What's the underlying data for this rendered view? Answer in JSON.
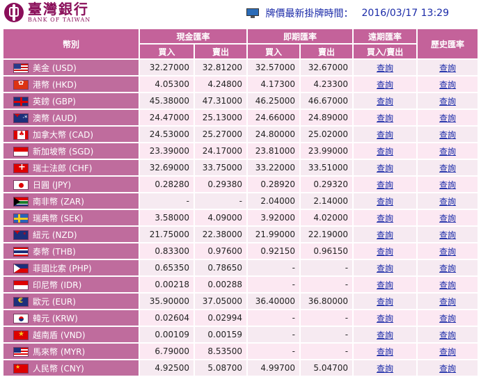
{
  "bank": {
    "name_cn": "臺灣銀行",
    "name_en": "BANK OF TAIWAN"
  },
  "timebar": {
    "label": "牌價最新掛牌時間：",
    "time": "2016/03/17 13:29",
    "icon": "monitor-icon"
  },
  "headers": {
    "currency": "幣別",
    "cash_rate": "現金匯率",
    "spot_rate": "即期匯率",
    "forward_rate": "遠期匯率",
    "history_rate": "歷史匯率",
    "buy": "買入",
    "sell": "賣出",
    "buy_sell": "買入/賣出"
  },
  "link_label": "查詢",
  "rows": [
    {
      "flag": "usd",
      "name": "美金 (USD)",
      "cash_buy": "32.27000",
      "cash_sell": "32.81200",
      "spot_buy": "32.57000",
      "spot_sell": "32.67000"
    },
    {
      "flag": "hkd",
      "name": "港幣 (HKD)",
      "cash_buy": "4.05300",
      "cash_sell": "4.24800",
      "spot_buy": "4.17300",
      "spot_sell": "4.23300"
    },
    {
      "flag": "gbp",
      "name": "英鎊 (GBP)",
      "cash_buy": "45.38000",
      "cash_sell": "47.31000",
      "spot_buy": "46.25000",
      "spot_sell": "46.67000"
    },
    {
      "flag": "aud",
      "name": "澳幣 (AUD)",
      "cash_buy": "24.47000",
      "cash_sell": "25.13000",
      "spot_buy": "24.66000",
      "spot_sell": "24.89000"
    },
    {
      "flag": "cad",
      "name": "加拿大幣 (CAD)",
      "cash_buy": "24.53000",
      "cash_sell": "25.27000",
      "spot_buy": "24.80000",
      "spot_sell": "25.02000"
    },
    {
      "flag": "sgd",
      "name": "新加坡幣 (SGD)",
      "cash_buy": "23.39000",
      "cash_sell": "24.17000",
      "spot_buy": "23.81000",
      "spot_sell": "23.99000"
    },
    {
      "flag": "chf",
      "name": "瑞士法郎 (CHF)",
      "cash_buy": "32.69000",
      "cash_sell": "33.75000",
      "spot_buy": "33.22000",
      "spot_sell": "33.51000"
    },
    {
      "flag": "jpy",
      "name": "日圓 (JPY)",
      "cash_buy": "0.28280",
      "cash_sell": "0.29380",
      "spot_buy": "0.28920",
      "spot_sell": "0.29320"
    },
    {
      "flag": "zar",
      "name": "南非幣 (ZAR)",
      "cash_buy": "-",
      "cash_sell": "-",
      "spot_buy": "2.04000",
      "spot_sell": "2.14000"
    },
    {
      "flag": "sek",
      "name": "瑞典幣 (SEK)",
      "cash_buy": "3.58000",
      "cash_sell": "4.09000",
      "spot_buy": "3.92000",
      "spot_sell": "4.02000"
    },
    {
      "flag": "nzd",
      "name": "紐元 (NZD)",
      "cash_buy": "21.75000",
      "cash_sell": "22.38000",
      "spot_buy": "21.99000",
      "spot_sell": "22.19000"
    },
    {
      "flag": "thb",
      "name": "泰幣 (THB)",
      "cash_buy": "0.83300",
      "cash_sell": "0.97600",
      "spot_buy": "0.92150",
      "spot_sell": "0.96150"
    },
    {
      "flag": "php",
      "name": "菲國比索 (PHP)",
      "cash_buy": "0.65350",
      "cash_sell": "0.78650",
      "spot_buy": "-",
      "spot_sell": "-"
    },
    {
      "flag": "idr",
      "name": "印尼幣 (IDR)",
      "cash_buy": "0.00218",
      "cash_sell": "0.00288",
      "spot_buy": "-",
      "spot_sell": "-"
    },
    {
      "flag": "eur",
      "name": "歐元 (EUR)",
      "cash_buy": "35.90000",
      "cash_sell": "37.05000",
      "spot_buy": "36.40000",
      "spot_sell": "36.80000"
    },
    {
      "flag": "krw",
      "name": "韓元 (KRW)",
      "cash_buy": "0.02604",
      "cash_sell": "0.02994",
      "spot_buy": "-",
      "spot_sell": "-"
    },
    {
      "flag": "vnd",
      "name": "越南盾 (VND)",
      "cash_buy": "0.00109",
      "cash_sell": "0.00159",
      "spot_buy": "-",
      "spot_sell": "-"
    },
    {
      "flag": "myr",
      "name": "馬來幣 (MYR)",
      "cash_buy": "6.79000",
      "cash_sell": "8.53500",
      "spot_buy": "-",
      "spot_sell": "-"
    },
    {
      "flag": "cny",
      "name": "人民幣 (CNY)",
      "cash_buy": "4.92500",
      "cash_sell": "5.08700",
      "spot_buy": "4.99700",
      "spot_sell": "5.04700"
    }
  ]
}
